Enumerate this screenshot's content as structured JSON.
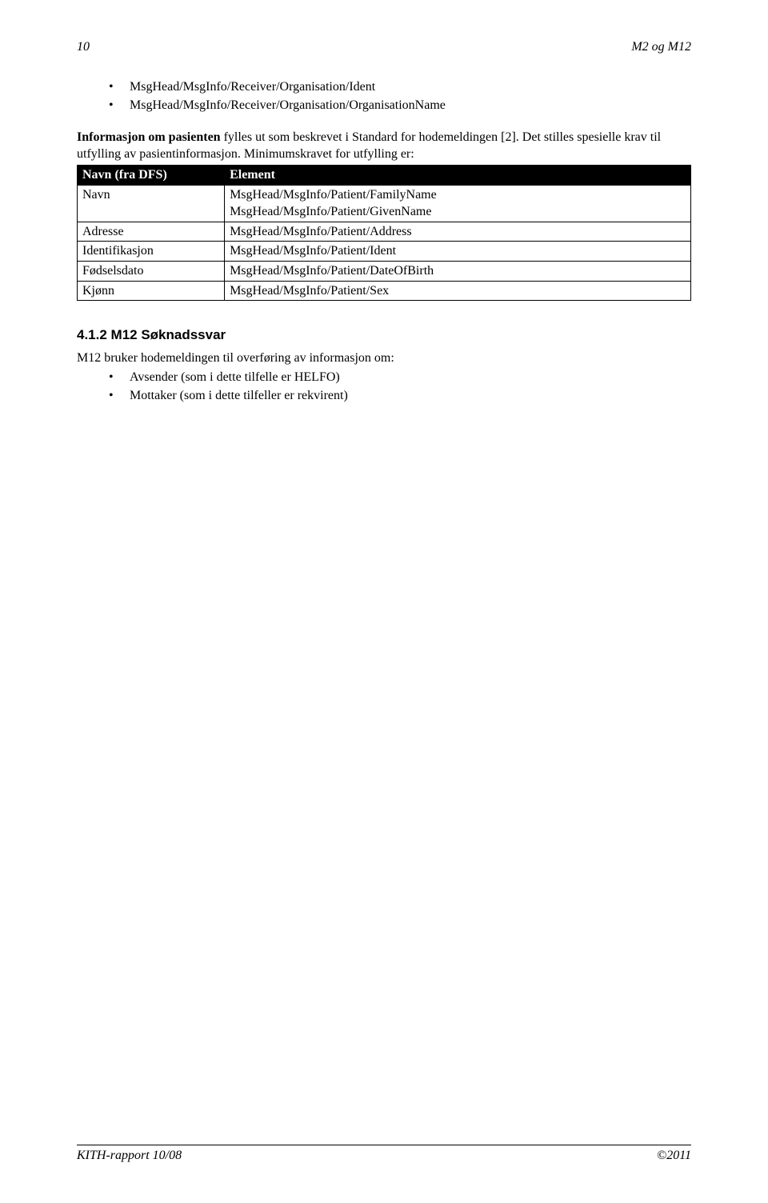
{
  "header": {
    "page_number": "10",
    "doc_title": "M2 og M12"
  },
  "list1": {
    "items": [
      "MsgHead/MsgInfo/Receiver/Organisation/Ident",
      "MsgHead/MsgInfo/Receiver/Organisation/OrganisationName"
    ]
  },
  "para1": {
    "bold_lead": "Informasjon om pasienten ",
    "rest": "fylles ut som beskrevet i Standard for hodemeldingen [2]. Det stilles spesielle krav til utfylling av pasientinformasjon. Minimumskravet for utfylling er:"
  },
  "table": {
    "header": {
      "c1": "Navn (fra DFS)",
      "c2": "Element"
    },
    "rows": [
      {
        "c1": "Navn",
        "c2a": "MsgHead/MsgInfo/Patient/FamilyName",
        "c2b": "MsgHead/MsgInfo/Patient/GivenName"
      },
      {
        "c1": "Adresse",
        "c2": "MsgHead/MsgInfo/Patient/Address"
      },
      {
        "c1": "Identifikasjon",
        "c2": "MsgHead/MsgInfo/Patient/Ident"
      },
      {
        "c1": "Fødselsdato",
        "c2": "MsgHead/MsgInfo/Patient/DateOfBirth"
      },
      {
        "c1": "Kjønn",
        "c2": "MsgHead/MsgInfo/Patient/Sex"
      }
    ]
  },
  "section": {
    "heading": "4.1.2 M12 Søknadssvar",
    "intro": "M12 bruker hodemeldingen til overføring av informasjon om:"
  },
  "list2": {
    "items": [
      "Avsender (som i dette tilfelle er HELFO)",
      "Mottaker (som i dette tilfeller er rekvirent)"
    ]
  },
  "footer": {
    "left": "KITH-rapport 10/08",
    "right": "©2011"
  }
}
